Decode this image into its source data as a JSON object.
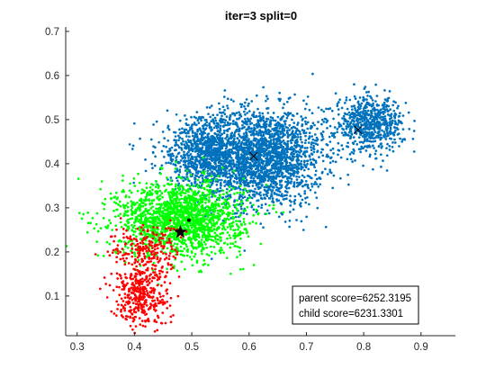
{
  "chart_data": {
    "type": "scatter",
    "title": "iter=3  split=0",
    "xlabel": "",
    "ylabel": "",
    "xlim": [
      0.28,
      0.96
    ],
    "ylim": [
      0.01,
      0.71
    ],
    "x_ticks": [
      "0.3",
      "0.4",
      "0.5",
      "0.6",
      "0.7",
      "0.8",
      "0.9"
    ],
    "y_ticks": [
      "0.1",
      "0.2",
      "0.3",
      "0.4",
      "0.5",
      "0.6",
      "0.7"
    ],
    "grid": false,
    "colors": {
      "blue_cluster": "#0072BD",
      "green_cluster": "#00FF00",
      "red_cluster": "#FF0000",
      "markers": "#000000"
    },
    "clusters": [
      {
        "color": "blue_cluster",
        "approx_points": 3600,
        "blobs": [
          {
            "cx": 0.62,
            "cy": 0.415,
            "sx": 0.055,
            "sy": 0.055,
            "weight": 0.62
          },
          {
            "cx": 0.52,
            "cy": 0.425,
            "sx": 0.04,
            "sy": 0.04,
            "weight": 0.2
          },
          {
            "cx": 0.81,
            "cy": 0.49,
            "sx": 0.03,
            "sy": 0.03,
            "weight": 0.18
          }
        ]
      },
      {
        "color": "green_cluster",
        "approx_points": 1700,
        "blobs": [
          {
            "cx": 0.48,
            "cy": 0.275,
            "sx": 0.055,
            "sy": 0.042,
            "weight": 1.0
          }
        ]
      },
      {
        "color": "red_cluster",
        "approx_points": 600,
        "blobs": [
          {
            "cx": 0.41,
            "cy": 0.1,
            "sx": 0.025,
            "sy": 0.035,
            "weight": 0.62
          },
          {
            "cx": 0.42,
            "cy": 0.2,
            "sx": 0.03,
            "sy": 0.03,
            "weight": 0.38
          }
        ]
      }
    ],
    "markers": [
      {
        "symbol": "x",
        "x": 0.608,
        "y": 0.417
      },
      {
        "symbol": "x",
        "x": 0.79,
        "y": 0.477
      },
      {
        "symbol": "star",
        "x": 0.48,
        "y": 0.245
      },
      {
        "symbol": "dot",
        "x": 0.495,
        "y": 0.272
      }
    ],
    "legend": {
      "position": "bottom-right",
      "lines": [
        "parent score=6252.3195",
        "child score=6231.3301"
      ]
    }
  }
}
